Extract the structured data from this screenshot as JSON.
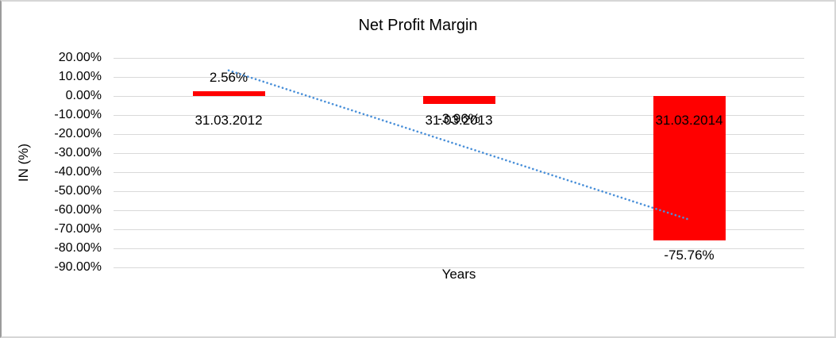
{
  "chart_data": {
    "type": "bar",
    "title": "Net Profit Margin",
    "xlabel": "Years",
    "ylabel": "IN (%)",
    "categories": [
      "31.03.2012",
      "31.03.2013",
      "31.03.2014"
    ],
    "values": [
      2.56,
      -3.96,
      -75.76
    ],
    "data_labels": [
      "2.56%",
      "-3.96%",
      "-75.76%"
    ],
    "ytick_values": [
      20,
      10,
      0,
      -10,
      -20,
      -30,
      -40,
      -50,
      -60,
      -70,
      -80,
      -90
    ],
    "ytick_labels": [
      "20.00%",
      "10.00%",
      "0.00%",
      "-10.00%",
      "-20.00%",
      "-30.00%",
      "-40.00%",
      "-50.00%",
      "-60.00%",
      "-70.00%",
      "-80.00%",
      "-90.00%"
    ],
    "ylim": [
      -90,
      20
    ],
    "grid": true,
    "legend": "none",
    "bar_color": "#ff0000",
    "gridline_color": "#d9d9d9",
    "text_color": "#000000",
    "trendline": {
      "kind": "linear",
      "style": "dotted",
      "color": "#4a90d9"
    }
  }
}
